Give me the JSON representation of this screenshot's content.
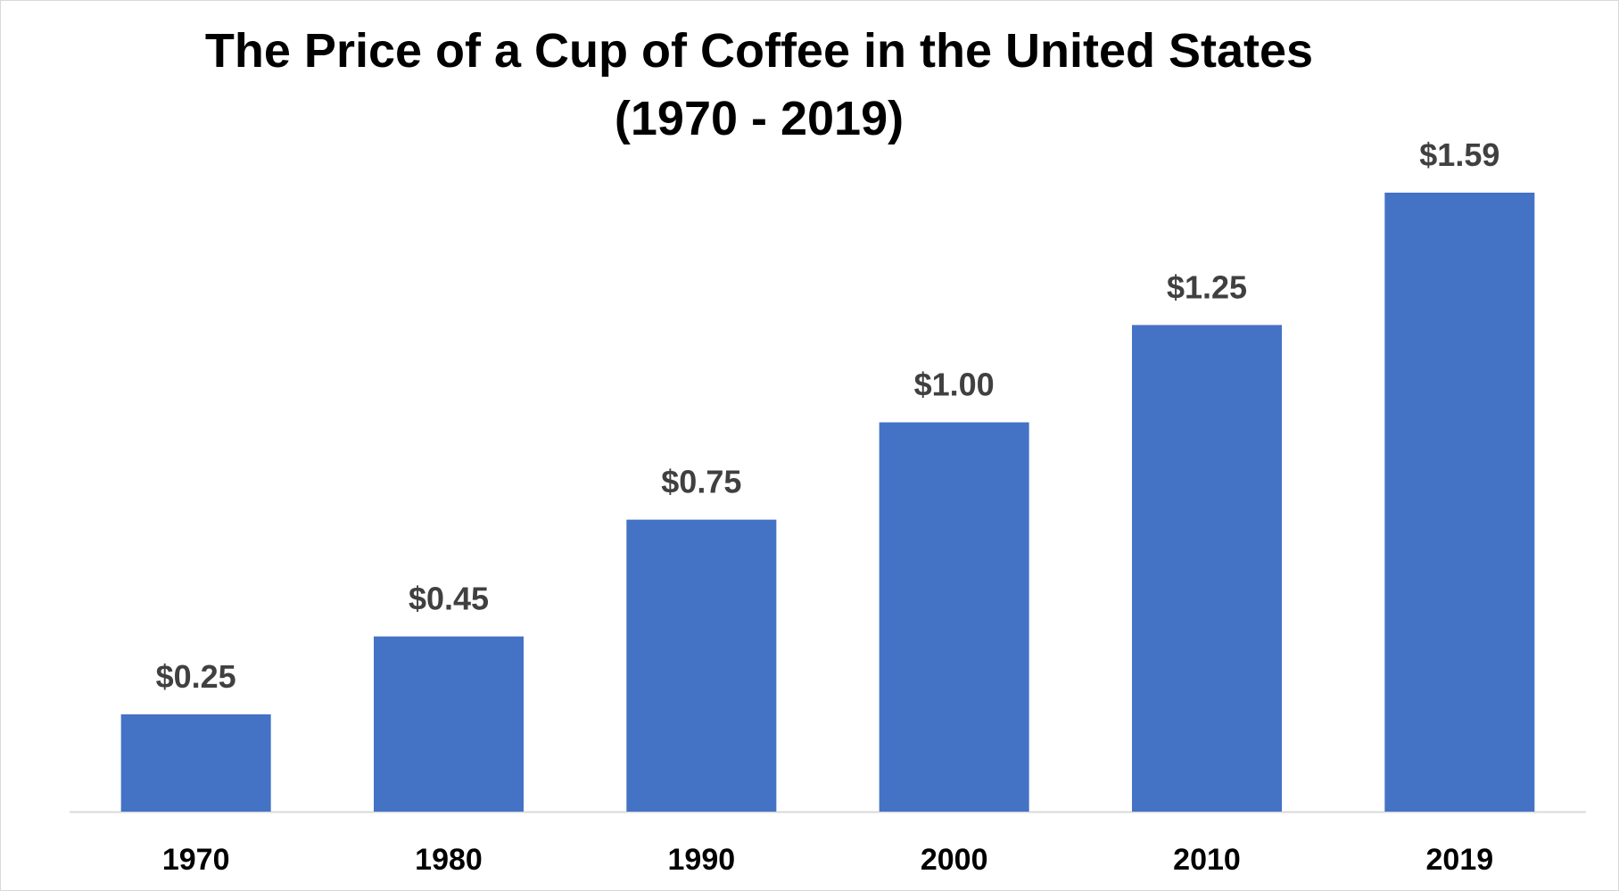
{
  "chart_data": {
    "type": "bar",
    "title_lines": [
      "The Price of a Cup of Coffee in the United States",
      "(1970 - 2019)"
    ],
    "xlabel": "",
    "ylabel": "",
    "categories": [
      "1970",
      "1980",
      "1990",
      "2000",
      "2010",
      "2019"
    ],
    "values": [
      0.25,
      0.45,
      0.75,
      1.0,
      1.25,
      1.59
    ],
    "data_labels": [
      "$0.25",
      "$0.45",
      "$0.75",
      "$1.00",
      "$1.25",
      "$1.59"
    ],
    "ylim": [
      0,
      1.8
    ],
    "grid": false,
    "legend": "none",
    "bar_color": "#4472c4",
    "axis_color": "#d9d9d9"
  }
}
